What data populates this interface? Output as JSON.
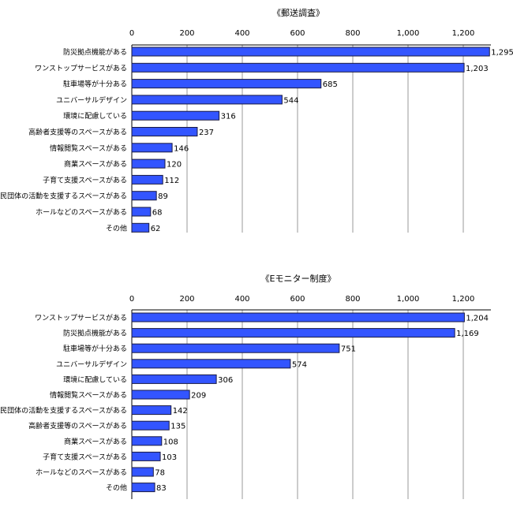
{
  "chart_data": [
    {
      "type": "bar",
      "orientation": "horizontal",
      "title": "《郵送調査》",
      "xlim": [
        0,
        1300
      ],
      "xticks": [
        "0",
        "200",
        "400",
        "600",
        "800",
        "1,000",
        "1,200"
      ],
      "grid": true,
      "categories": [
        "防災拠点機能がある",
        "ワンストップサービスがある",
        "駐車場等が十分ある",
        "ユニバーサルデザイン",
        "環境に配慮している",
        "高齢者支援等のスペースがある",
        "情報閲覧スペースがある",
        "商業スペースがある",
        "子育て支援スペースがある",
        "市民団体の活動を支援するスペースがある",
        "ホールなどのスペースがある",
        "その他"
      ],
      "values": [
        1295,
        1203,
        685,
        544,
        316,
        237,
        146,
        120,
        112,
        89,
        68,
        62
      ],
      "value_labels": [
        "1,295",
        "1,203",
        "685",
        "544",
        "316",
        "237",
        "146",
        "120",
        "112",
        "89",
        "68",
        "62"
      ]
    },
    {
      "type": "bar",
      "orientation": "horizontal",
      "title": "《Eモニター制度》",
      "xlim": [
        0,
        1300
      ],
      "xticks": [
        "0",
        "200",
        "400",
        "600",
        "800",
        "1,000",
        "1,200"
      ],
      "grid": true,
      "categories": [
        "ワンストップサービスがある",
        "防災拠点機能がある",
        "駐車場等が十分ある",
        "ユニバーサルデザイン",
        "環境に配慮している",
        "情報閲覧スペースがある",
        "市民団体の活動を支援するスペースがある",
        "高齢者支援等のスペースがある",
        "商業スペースがある",
        "子育て支援スペースがある",
        "ホールなどのスペースがある",
        "その他"
      ],
      "values": [
        1204,
        1169,
        751,
        574,
        306,
        209,
        142,
        135,
        108,
        103,
        78,
        83
      ],
      "value_labels": [
        "1,204",
        "1,169",
        "751",
        "574",
        "306",
        "209",
        "142",
        "135",
        "108",
        "103",
        "78",
        "83"
      ]
    }
  ]
}
